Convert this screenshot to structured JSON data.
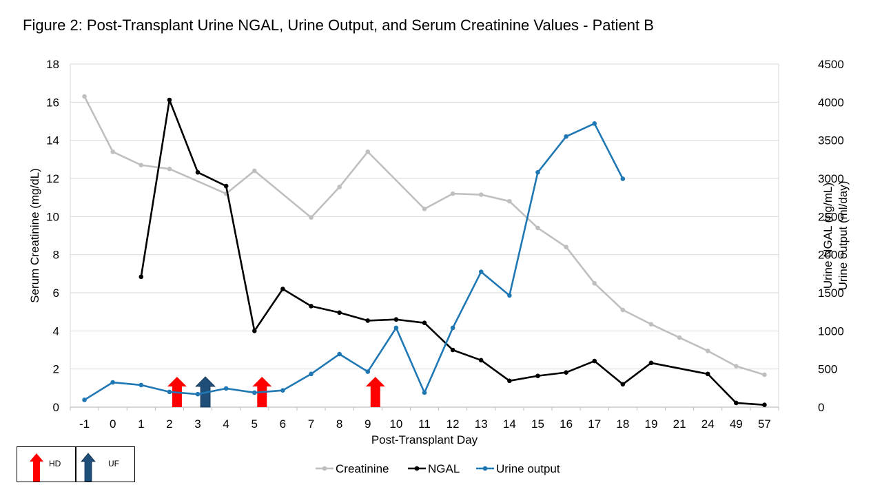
{
  "title": "Figure 2: Post-Transplant Urine NGAL, Urine Output, and Serum Creatinine Values - Patient B",
  "chart_data": {
    "type": "line",
    "categories": [
      "-1",
      "0",
      "1",
      "2",
      "3",
      "4",
      "5",
      "6",
      "7",
      "8",
      "9",
      "10",
      "11",
      "12",
      "13",
      "14",
      "15",
      "16",
      "17",
      "18",
      "19",
      "21",
      "24",
      "49",
      "57"
    ],
    "xlabel": "Post-Transplant Day",
    "ylabel_left": "Serum Creatinine (mg/dL)",
    "ylabel_right": [
      "Urine NGAL (ng/mL)",
      "Urine output (ml/day)"
    ],
    "ylim_left": [
      0,
      18
    ],
    "yticks_left": [
      "0",
      "2",
      "4",
      "6",
      "8",
      "10",
      "12",
      "14",
      "16",
      "18"
    ],
    "ylim_right": [
      0,
      4500
    ],
    "yticks_right": [
      "0",
      "500",
      "1000",
      "1500",
      "2000",
      "2500",
      "3000",
      "3500",
      "4000",
      "4500"
    ],
    "grid": true,
    "legend_position": "bottom",
    "series": [
      {
        "name": "Creatinine",
        "axis": "left",
        "color": "#BFBFBF",
        "values": [
          16.3,
          13.4,
          12.7,
          12.5,
          null,
          11.2,
          12.4,
          null,
          9.95,
          11.55,
          13.4,
          null,
          10.4,
          11.2,
          11.15,
          10.8,
          9.4,
          8.4,
          6.5,
          5.1,
          4.35,
          3.65,
          2.95,
          2.15,
          1.7
        ]
      },
      {
        "name": "NGAL",
        "axis": "right",
        "color": "#000000",
        "values": [
          null,
          null,
          1710,
          4030,
          3080,
          2900,
          1000,
          1550,
          1325,
          1240,
          1135,
          1150,
          1105,
          750,
          615,
          345,
          410,
          455,
          605,
          300,
          580,
          null,
          435,
          55,
          30
        ]
      },
      {
        "name": "Urine output",
        "axis": "right",
        "color": "#1F77B4",
        "values": [
          95,
          325,
          290,
          200,
          170,
          245,
          190,
          220,
          435,
          695,
          465,
          1040,
          190,
          1040,
          1775,
          1465,
          3080,
          3550,
          3720,
          2995,
          null,
          null,
          null,
          null,
          null
        ]
      }
    ],
    "annotations": [
      {
        "type": "HD",
        "day": "2",
        "color": "#FF0000"
      },
      {
        "type": "UF",
        "day": "3",
        "color": "#1F4E79"
      },
      {
        "type": "HD",
        "day": "5",
        "color": "#FF0000"
      },
      {
        "type": "HD",
        "day": "9",
        "color": "#FF0000"
      }
    ]
  },
  "marker_legend": [
    {
      "label": "HD",
      "color": "#FF0000"
    },
    {
      "label": "UF",
      "color": "#1F4E79"
    }
  ]
}
